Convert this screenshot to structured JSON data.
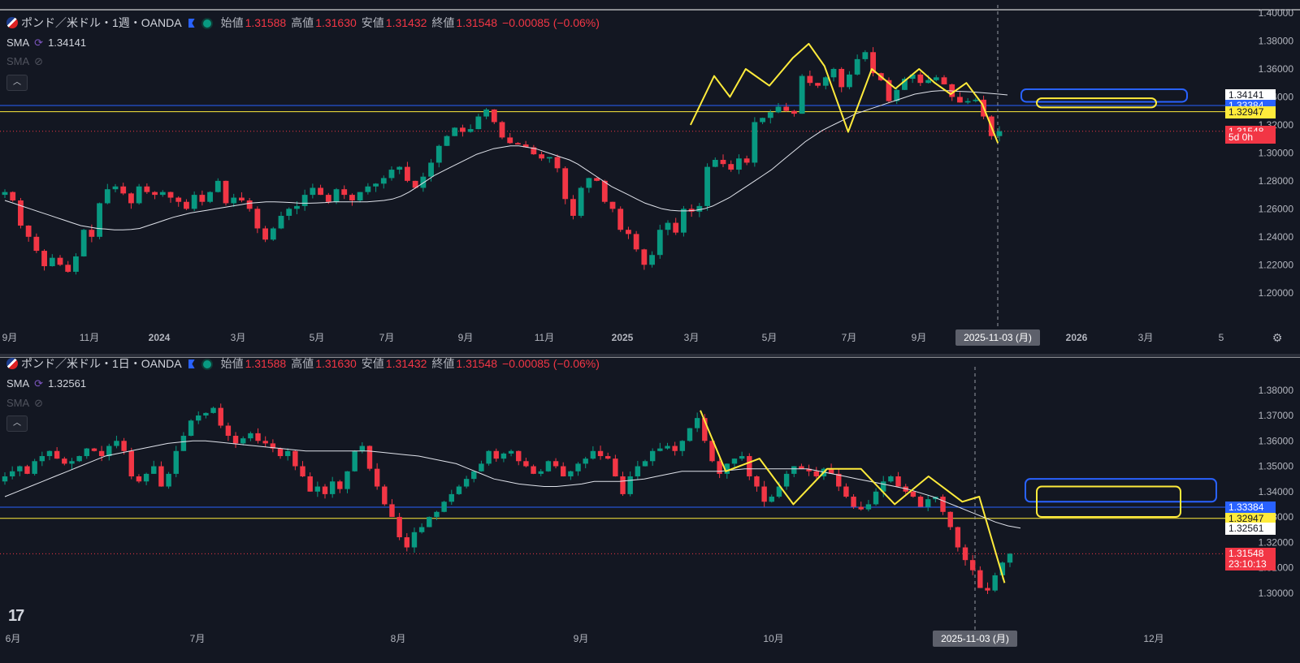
{
  "panes": [
    {
      "id": "weekly",
      "symbol": "ポンド／米ドル・1週・OANDA",
      "open_label": "始値",
      "open": "1.31588",
      "high_label": "高値",
      "high": "1.31630",
      "low_label": "安値",
      "low": "1.31432",
      "close_label": "終値",
      "close": "1.31548",
      "change": "−0.00085 (−0.06%)",
      "sma1_label": "SMA",
      "sma1_value": "1.34141",
      "sma2_label": "SMA",
      "price_tags": [
        {
          "text": "1.34141",
          "bg": "#ffffff",
          "fg": "#131722",
          "price": 1.34141
        },
        {
          "text": "1.33384",
          "bg": "#2962ff",
          "fg": "#ffffff",
          "price": 1.33384
        },
        {
          "text": "1.32947",
          "bg": "#ffeb3b",
          "fg": "#131722",
          "price": 1.32947
        },
        {
          "text": "1.31548",
          "bg": "#f23645",
          "fg": "#ffffff",
          "price": 1.31548
        },
        {
          "text": "5d 0h",
          "bg": "#f23645",
          "fg": "#ffffff",
          "price": 1.311
        }
      ],
      "date_highlight": "2025-11-03 (月)"
    },
    {
      "id": "daily",
      "symbol": "ポンド／米ドル・1日・OANDA",
      "open_label": "始値",
      "open": "1.31588",
      "high_label": "高値",
      "high": "1.31630",
      "low_label": "安値",
      "low": "1.31432",
      "close_label": "終値",
      "close": "1.31548",
      "change": "−0.00085 (−0.06%)",
      "sma1_label": "SMA",
      "sma1_value": "1.32561",
      "sma2_label": "SMA",
      "price_tags": [
        {
          "text": "1.33384",
          "bg": "#2962ff",
          "fg": "#ffffff",
          "price": 1.33384
        },
        {
          "text": "1.32947",
          "bg": "#ffeb3b",
          "fg": "#131722",
          "price": 1.32947
        },
        {
          "text": "1.32561",
          "bg": "#ffffff",
          "fg": "#131722",
          "price": 1.32561
        },
        {
          "text": "1.31548",
          "bg": "#f23645",
          "fg": "#ffffff",
          "price": 1.31548
        },
        {
          "text": "23:10:13",
          "bg": "#f23645",
          "fg": "#ffffff",
          "price": 1.3114
        }
      ],
      "date_highlight": "2025-11-03 (月)"
    }
  ],
  "chart_data": [
    {
      "type": "candlestick",
      "timeframe": "1週",
      "ylim": [
        1.19,
        1.4
      ],
      "y_ticks": [
        "1.40000",
        "1.38000",
        "1.36000",
        "1.34000",
        "1.32000",
        "1.30000",
        "1.28000",
        "1.26000",
        "1.24000",
        "1.22000",
        "1.20000"
      ],
      "x_ticks": [
        "9月",
        "11月",
        "2024",
        "3月",
        "5月",
        "7月",
        "9月",
        "11月",
        "2025",
        "3月",
        "5月",
        "7月",
        "9月",
        "2026",
        "3月",
        "5"
      ],
      "colors": {
        "up": "#089981",
        "down": "#f23645",
        "sma": "#e0e3eb",
        "support_blue": "#2962ff",
        "support_yellow": "#ffeb3b"
      },
      "horizontal_lines": [
        1.33384,
        1.32947
      ],
      "current_price": 1.31548,
      "closes": [
        1.272,
        1.266,
        1.248,
        1.24,
        1.23,
        1.219,
        1.225,
        1.22,
        1.215,
        1.226,
        1.245,
        1.24,
        1.264,
        1.274,
        1.276,
        1.271,
        1.264,
        1.276,
        1.272,
        1.27,
        1.272,
        1.268,
        1.265,
        1.26,
        1.27,
        1.265,
        1.272,
        1.28,
        1.264,
        1.268,
        1.266,
        1.26,
        1.246,
        1.238,
        1.246,
        1.255,
        1.26,
        1.262,
        1.27,
        1.275,
        1.27,
        1.265,
        1.274,
        1.27,
        1.266,
        1.272,
        1.276,
        1.278,
        1.282,
        1.288,
        1.29,
        1.28,
        1.275,
        1.283,
        1.293,
        1.305,
        1.312,
        1.318,
        1.315,
        1.317,
        1.326,
        1.331,
        1.322,
        1.311,
        1.307,
        1.306,
        1.304,
        1.299,
        1.296,
        1.297,
        1.289,
        1.267,
        1.255,
        1.275,
        1.282,
        1.28,
        1.265,
        1.26,
        1.245,
        1.242,
        1.231,
        1.22,
        1.227,
        1.245,
        1.25,
        1.243,
        1.26,
        1.258,
        1.262,
        1.29,
        1.295,
        1.292,
        1.288,
        1.296,
        1.293,
        1.322,
        1.325,
        1.329,
        1.333,
        1.33,
        1.328,
        1.355,
        1.35,
        1.348,
        1.354,
        1.36,
        1.347,
        1.356,
        1.367,
        1.372,
        1.357,
        1.352,
        1.337,
        1.345,
        1.353,
        1.356,
        1.35,
        1.352,
        1.354,
        1.349,
        1.34,
        1.336,
        1.337,
        1.338,
        1.326,
        1.312,
        1.3155
      ],
      "sma": [
        1.266,
        1.264,
        1.262,
        1.26,
        1.258,
        1.256,
        1.254,
        1.252,
        1.25,
        1.248,
        1.247,
        1.246,
        1.2455,
        1.245,
        1.245,
        1.2452,
        1.246,
        1.248,
        1.25,
        1.252,
        1.254,
        1.2555,
        1.257,
        1.258,
        1.259,
        1.26,
        1.261,
        1.262,
        1.263,
        1.264,
        1.2645,
        1.265,
        1.265,
        1.2648,
        1.2645,
        1.264,
        1.264,
        1.2642,
        1.2645,
        1.265,
        1.265,
        1.265,
        1.265,
        1.265,
        1.2655,
        1.266,
        1.267,
        1.269,
        1.272,
        1.276,
        1.28,
        1.284,
        1.287,
        1.29,
        1.293,
        1.296,
        1.299,
        1.301,
        1.303,
        1.304,
        1.305,
        1.305,
        1.304,
        1.303,
        1.301,
        1.299,
        1.297,
        1.295,
        1.292,
        1.288,
        1.284,
        1.28,
        1.276,
        1.273,
        1.27,
        1.267,
        1.264,
        1.262,
        1.26,
        1.259,
        1.2585,
        1.2585,
        1.259,
        1.26,
        1.262,
        1.265,
        1.268,
        1.272,
        1.276,
        1.28,
        1.284,
        1.288,
        1.293,
        1.298,
        1.303,
        1.308,
        1.312,
        1.316,
        1.319,
        1.322,
        1.325,
        1.328,
        1.33,
        1.332,
        1.334,
        1.336,
        1.338,
        1.34,
        1.342,
        1.343,
        1.344,
        1.3445,
        1.3445,
        1.344,
        1.3438,
        1.3435,
        1.343,
        1.3425,
        1.342,
        1.3414
      ],
      "drawn_polyline": [
        [
          87,
          1.32
        ],
        [
          90,
          1.355
        ],
        [
          92,
          1.34
        ],
        [
          94,
          1.36
        ],
        [
          97,
          1.348
        ],
        [
          100,
          1.368
        ],
        [
          102,
          1.378
        ],
        [
          104,
          1.362
        ],
        [
          107,
          1.315
        ],
        [
          110,
          1.36
        ],
        [
          113,
          1.346
        ],
        [
          116,
          1.36
        ],
        [
          118,
          1.35
        ],
        [
          120,
          1.342
        ],
        [
          122,
          1.35
        ],
        [
          124,
          1.335
        ],
        [
          126,
          1.307
        ]
      ],
      "annotation_boxes": [
        {
          "color": "#2962ff",
          "x0": 132,
          "x1": 155,
          "y0": 1.3455,
          "y1": 1.3365
        },
        {
          "color": "#ffeb3b",
          "x0": 134,
          "x1": 148,
          "y0": 1.339,
          "y1": 1.3325
        }
      ]
    },
    {
      "type": "candlestick",
      "timeframe": "1日",
      "ylim": [
        1.2945,
        1.386
      ],
      "y_ticks": [
        "1.38000",
        "1.37000",
        "1.36000",
        "1.35000",
        "1.34000",
        "1.33000",
        "1.32000",
        "1.31000",
        "1.30000"
      ],
      "x_ticks": [
        "6月",
        "7月",
        "8月",
        "9月",
        "10月",
        "12月"
      ],
      "colors": {
        "up": "#089981",
        "down": "#f23645",
        "sma": "#e0e3eb",
        "support_blue": "#2962ff",
        "support_yellow": "#ffeb3b"
      },
      "horizontal_lines": [
        1.33384,
        1.32947
      ],
      "current_price": 1.31548,
      "closes": [
        1.346,
        1.348,
        1.35,
        1.347,
        1.352,
        1.354,
        1.356,
        1.353,
        1.351,
        1.352,
        1.354,
        1.357,
        1.356,
        1.354,
        1.358,
        1.36,
        1.356,
        1.346,
        1.344,
        1.347,
        1.35,
        1.342,
        1.347,
        1.356,
        1.362,
        1.368,
        1.37,
        1.371,
        1.373,
        1.366,
        1.362,
        1.359,
        1.361,
        1.363,
        1.36,
        1.359,
        1.357,
        1.354,
        1.356,
        1.35,
        1.346,
        1.34,
        1.342,
        1.339,
        1.344,
        1.341,
        1.348,
        1.356,
        1.358,
        1.349,
        1.342,
        1.335,
        1.33,
        1.322,
        1.318,
        1.324,
        1.326,
        1.33,
        1.332,
        1.336,
        1.339,
        1.342,
        1.345,
        1.348,
        1.351,
        1.356,
        1.353,
        1.355,
        1.356,
        1.352,
        1.35,
        1.347,
        1.348,
        1.352,
        1.35,
        1.346,
        1.348,
        1.351,
        1.353,
        1.356,
        1.354,
        1.353,
        1.346,
        1.339,
        1.346,
        1.35,
        1.352,
        1.356,
        1.357,
        1.358,
        1.356,
        1.36,
        1.365,
        1.369,
        1.36,
        1.352,
        1.347,
        1.351,
        1.353,
        1.354,
        1.346,
        1.342,
        1.336,
        1.338,
        1.342,
        1.347,
        1.35,
        1.349,
        1.348,
        1.346,
        1.349,
        1.347,
        1.342,
        1.338,
        1.334,
        1.333,
        1.335,
        1.34,
        1.344,
        1.346,
        1.342,
        1.34,
        1.338,
        1.334,
        1.337,
        1.338,
        1.332,
        1.326,
        1.318,
        1.313,
        1.309,
        1.302,
        1.301,
        1.307,
        1.312,
        1.3155
      ],
      "sma": [
        1.338,
        1.34,
        1.342,
        1.344,
        1.346,
        1.348,
        1.35,
        1.352,
        1.354,
        1.355,
        1.356,
        1.357,
        1.358,
        1.359,
        1.3595,
        1.36,
        1.36,
        1.3595,
        1.359,
        1.3585,
        1.358,
        1.3575,
        1.357,
        1.3565,
        1.356,
        1.356,
        1.356,
        1.356,
        1.356,
        1.356,
        1.3555,
        1.355,
        1.3545,
        1.354,
        1.353,
        1.352,
        1.351,
        1.349,
        1.347,
        1.345,
        1.344,
        1.343,
        1.3425,
        1.342,
        1.342,
        1.3425,
        1.343,
        1.344,
        1.344,
        1.344,
        1.3445,
        1.345,
        1.346,
        1.347,
        1.348,
        1.348,
        1.348,
        1.348,
        1.3485,
        1.349,
        1.349,
        1.349,
        1.349,
        1.349,
        1.349,
        1.348,
        1.347,
        1.346,
        1.345,
        1.344,
        1.343,
        1.342,
        1.341,
        1.3395,
        1.338,
        1.336,
        1.334,
        1.332,
        1.33,
        1.328,
        1.3265,
        1.3256
      ],
      "drawn_polyline": [
        [
          0,
          1.372
        ],
        [
          3,
          1.348
        ],
        [
          7,
          1.353
        ],
        [
          11,
          1.335
        ],
        [
          15,
          1.349
        ],
        [
          19,
          1.349
        ],
        [
          23,
          1.335
        ],
        [
          27,
          1.346
        ],
        [
          31,
          1.336
        ],
        [
          33,
          1.338
        ],
        [
          36,
          1.304
        ]
      ],
      "annotation_boxes": [
        {
          "color": "#2962ff",
          "x0": 0,
          "x1": 1,
          "y0": 1.345,
          "y1": 1.336
        },
        {
          "color": "#ffeb3b",
          "x0": 0,
          "x1": 1,
          "y0": 1.342,
          "y1": 1.33
        }
      ]
    }
  ],
  "tv_logo": "17"
}
